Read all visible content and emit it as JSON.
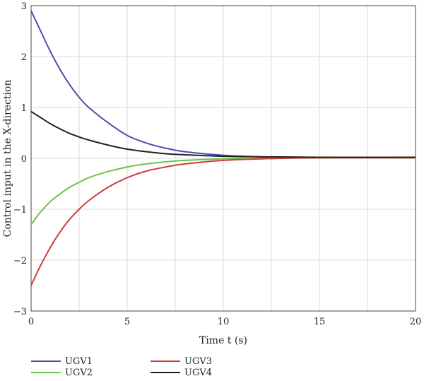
{
  "chart_data": {
    "type": "line",
    "title": "",
    "xlabel": "Time t (s)",
    "ylabel": "Control input in the X-direction",
    "xlim": [
      0,
      20
    ],
    "ylim": [
      -3,
      3
    ],
    "xticks": [
      "0",
      "5",
      "10",
      "15",
      "20"
    ],
    "yticks": [
      "3",
      "2",
      "1",
      "0",
      "−1",
      "−2",
      "−3"
    ],
    "grid": true,
    "legend_position": "bottom",
    "series": [
      {
        "name": "UGV1",
        "color": "#4a4fb0",
        "x": [
          0,
          0.5,
          1,
          1.5,
          2,
          2.5,
          3,
          4,
          5,
          6,
          7,
          8,
          10,
          12,
          15,
          20
        ],
        "y": [
          2.9,
          2.5,
          2.1,
          1.75,
          1.45,
          1.2,
          1.0,
          0.7,
          0.45,
          0.3,
          0.2,
          0.13,
          0.06,
          0.03,
          0.02,
          0.02
        ]
      },
      {
        "name": "UGV2",
        "color": "#6cc24a",
        "x": [
          0,
          0.5,
          1,
          1.5,
          2,
          2.5,
          3,
          4,
          5,
          6,
          7,
          8,
          10,
          12,
          15,
          20
        ],
        "y": [
          -1.3,
          -1.05,
          -0.85,
          -0.7,
          -0.57,
          -0.47,
          -0.38,
          -0.26,
          -0.17,
          -0.11,
          -0.07,
          -0.04,
          -0.01,
          0.0,
          0.01,
          0.01
        ]
      },
      {
        "name": "UGV3",
        "color": "#d23a3a",
        "x": [
          0,
          0.5,
          1,
          1.5,
          2,
          2.5,
          3,
          4,
          5,
          6,
          7,
          8,
          10,
          12,
          15,
          20
        ],
        "y": [
          -2.5,
          -2.1,
          -1.75,
          -1.45,
          -1.2,
          -1.0,
          -0.83,
          -0.57,
          -0.38,
          -0.25,
          -0.17,
          -0.11,
          -0.04,
          -0.01,
          0.01,
          0.01
        ]
      },
      {
        "name": "UGV4",
        "color": "#222222",
        "x": [
          0,
          0.5,
          1,
          1.5,
          2,
          2.5,
          3,
          4,
          5,
          6,
          7,
          8,
          10,
          12,
          15,
          20
        ],
        "y": [
          0.92,
          0.8,
          0.68,
          0.58,
          0.49,
          0.42,
          0.36,
          0.26,
          0.18,
          0.13,
          0.09,
          0.07,
          0.04,
          0.03,
          0.02,
          0.02
        ]
      }
    ]
  }
}
